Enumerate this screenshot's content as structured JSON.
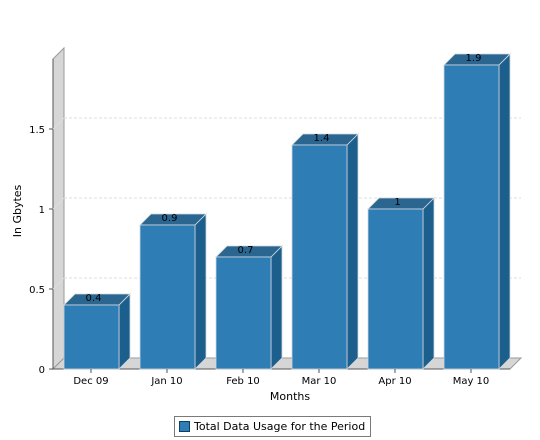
{
  "chart_data": {
    "type": "bar",
    "categories": [
      "Dec 09",
      "Jan 10",
      "Feb 10",
      "Mar 10",
      "Apr 10",
      "May 10"
    ],
    "series": [
      {
        "name": "Total Data Usage for the Period",
        "values": [
          0.4,
          0.9,
          0.7,
          1.4,
          1,
          1.9
        ],
        "labels": [
          "0.4",
          "0.9",
          "0.7",
          "1.4",
          "1",
          "1.9"
        ]
      }
    ],
    "xlabel": "Months",
    "ylabel": "In Gbytes",
    "ylim": [
      0,
      2
    ],
    "yticks": [
      0,
      0.5,
      1,
      1.5
    ],
    "ytick_labels": [
      "0",
      "0.5",
      "1",
      "1.5"
    ],
    "grid": true,
    "legend_position": "bottom-center",
    "style": "3d",
    "colors": {
      "bar_front": "#2e7db5",
      "bar_side": "#1d5f8c",
      "bar_top": "#2a6690",
      "grid": "#dddddd",
      "wall": "#d6d6d6"
    }
  }
}
